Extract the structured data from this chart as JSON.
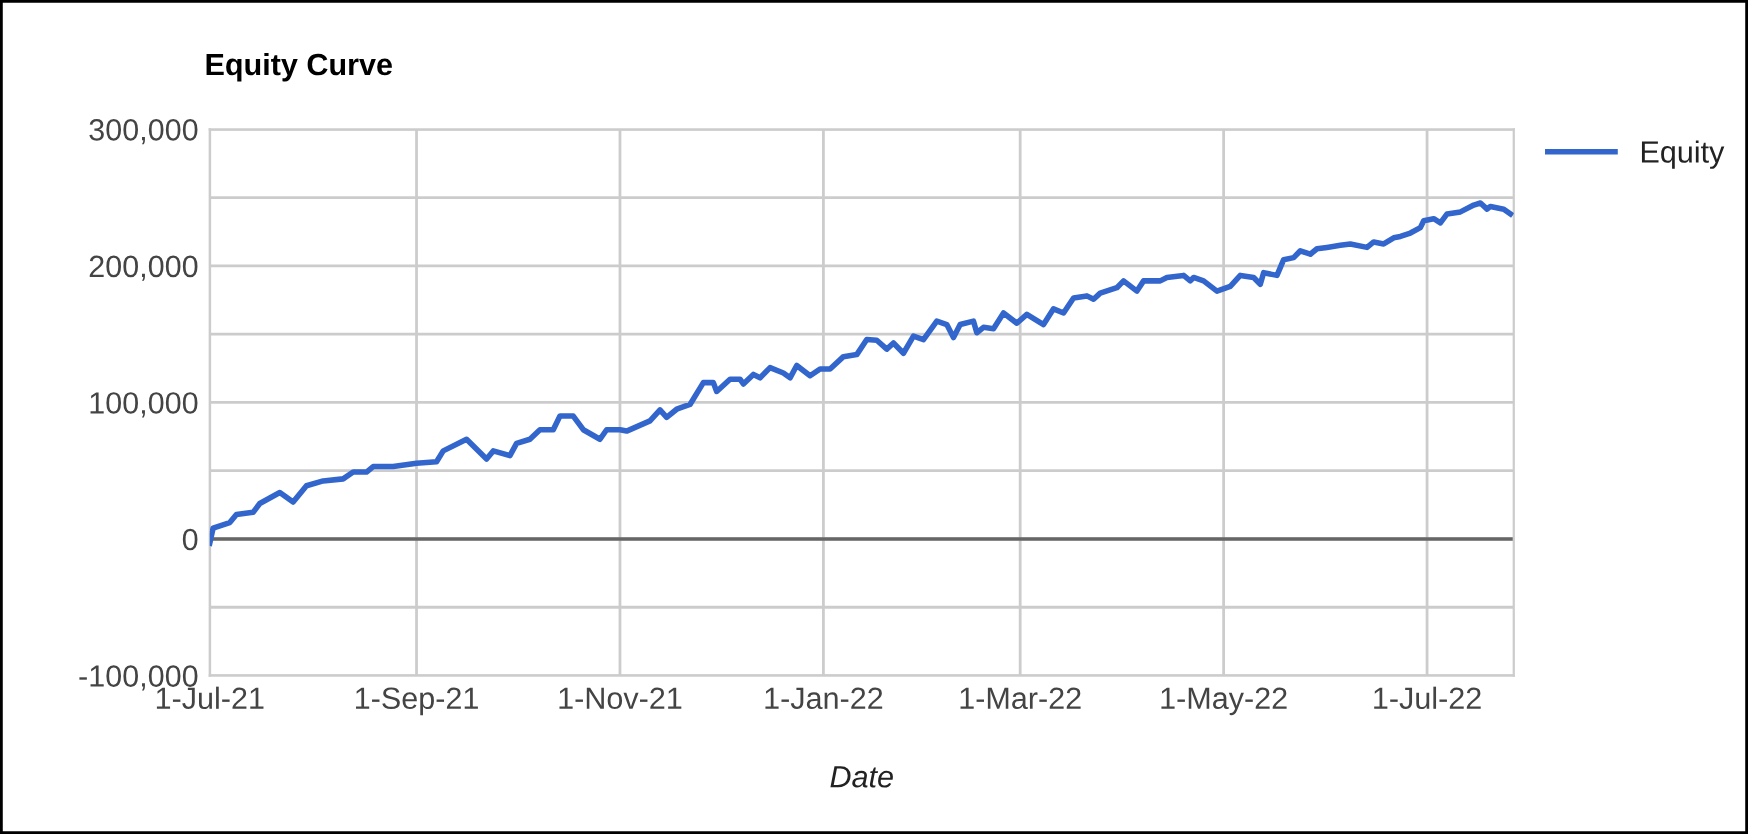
{
  "chart_data": {
    "type": "line",
    "title": "Equity Curve",
    "xlabel": "Date",
    "xlim": [
      "2021-07-01",
      "2022-07-27"
    ],
    "xticks": [
      {
        "value": "2021-07-01",
        "label": "1-Jul-21"
      },
      {
        "value": "2021-09-01",
        "label": "1-Sep-21"
      },
      {
        "value": "2021-11-01",
        "label": "1-Nov-21"
      },
      {
        "value": "2022-01-01",
        "label": "1-Jan-22"
      },
      {
        "value": "2022-03-01",
        "label": "1-Mar-22"
      },
      {
        "value": "2022-05-01",
        "label": "1-May-22"
      },
      {
        "value": "2022-07-01",
        "label": "1-Jul-22"
      }
    ],
    "ylim": [
      -100000,
      300000
    ],
    "yticks": [
      {
        "value": -100000,
        "label": "-100,000"
      },
      {
        "value": -50000,
        "label": null
      },
      {
        "value": 0,
        "label": "0"
      },
      {
        "value": 50000,
        "label": null
      },
      {
        "value": 100000,
        "label": "100,000"
      },
      {
        "value": 150000,
        "label": null
      },
      {
        "value": 200000,
        "label": "200,000"
      },
      {
        "value": 250000,
        "label": null
      },
      {
        "value": 300000,
        "label": "300,000"
      }
    ],
    "grid": true,
    "legend": "top right",
    "marker": "none",
    "line_style": "solid",
    "ref_lines": [
      {
        "axis": "y",
        "value": 0,
        "color": "#666666"
      }
    ],
    "x": [
      "2021-07-01",
      "2021-07-02",
      "2021-07-07",
      "2021-07-09",
      "2021-07-14",
      "2021-07-16",
      "2021-07-22",
      "2021-07-26",
      "2021-07-30",
      "2021-08-04",
      "2021-08-10",
      "2021-08-13",
      "2021-08-17",
      "2021-08-19",
      "2021-08-25",
      "2021-09-01",
      "2021-09-07",
      "2021-09-09",
      "2021-09-16",
      "2021-09-22",
      "2021-09-24",
      "2021-09-29",
      "2021-10-01",
      "2021-10-05",
      "2021-10-08",
      "2021-10-12",
      "2021-10-14",
      "2021-10-18",
      "2021-10-21",
      "2021-10-26",
      "2021-10-28",
      "2021-11-01",
      "2021-11-03",
      "2021-11-10",
      "2021-11-13",
      "2021-11-15",
      "2021-11-18",
      "2021-11-22",
      "2021-11-26",
      "2021-11-29",
      "2021-11-30",
      "2021-12-04",
      "2021-12-07",
      "2021-12-08",
      "2021-12-11",
      "2021-12-13",
      "2021-12-16",
      "2021-12-20",
      "2021-12-22",
      "2021-12-24",
      "2021-12-28",
      "2021-12-31",
      "2022-01-03",
      "2022-01-07",
      "2022-01-11",
      "2022-01-14",
      "2022-01-17",
      "2022-01-20",
      "2022-01-22",
      "2022-01-25",
      "2022-01-28",
      "2022-01-31",
      "2022-02-04",
      "2022-02-07",
      "2022-02-09",
      "2022-02-11",
      "2022-02-15",
      "2022-02-16",
      "2022-02-18",
      "2022-02-21",
      "2022-02-24",
      "2022-02-28",
      "2022-03-03",
      "2022-03-08",
      "2022-03-11",
      "2022-03-14",
      "2022-03-17",
      "2022-03-21",
      "2022-03-23",
      "2022-03-25",
      "2022-03-30",
      "2022-04-01",
      "2022-04-05",
      "2022-04-07",
      "2022-04-12",
      "2022-04-14",
      "2022-04-19",
      "2022-04-21",
      "2022-04-22",
      "2022-04-25",
      "2022-04-29",
      "2022-05-03",
      "2022-05-06",
      "2022-05-10",
      "2022-05-12",
      "2022-05-13",
      "2022-05-17",
      "2022-05-19",
      "2022-05-22",
      "2022-05-24",
      "2022-05-27",
      "2022-05-29",
      "2022-06-01",
      "2022-06-05",
      "2022-06-08",
      "2022-06-13",
      "2022-06-15",
      "2022-06-18",
      "2022-06-21",
      "2022-06-23",
      "2022-06-26",
      "2022-06-29",
      "2022-06-30",
      "2022-07-03",
      "2022-07-05",
      "2022-07-07",
      "2022-07-11",
      "2022-07-15",
      "2022-07-17",
      "2022-07-19",
      "2022-07-20",
      "2022-07-24",
      "2022-07-26"
    ],
    "series": [
      {
        "name": "Equity",
        "color": "#3366cc",
        "values": [
          -3000,
          8000,
          12000,
          18000,
          19500,
          26000,
          34000,
          27000,
          39000,
          42500,
          44000,
          49000,
          49000,
          53000,
          53000,
          55500,
          56500,
          64500,
          73000,
          58500,
          64500,
          61000,
          70000,
          73000,
          80000,
          80000,
          90000,
          90000,
          80000,
          73000,
          80000,
          80000,
          79000,
          86500,
          94500,
          89000,
          95000,
          98500,
          114500,
          114500,
          108000,
          117000,
          117000,
          113500,
          120500,
          118000,
          125500,
          121500,
          118000,
          127000,
          119500,
          124500,
          124500,
          133500,
          135000,
          146000,
          145500,
          139000,
          143500,
          136000,
          148500,
          146000,
          159500,
          157000,
          147500,
          157000,
          159500,
          151000,
          155000,
          154000,
          165500,
          158000,
          164500,
          157000,
          168500,
          165500,
          176500,
          178000,
          175500,
          180000,
          184000,
          189000,
          181500,
          189000,
          189000,
          191500,
          193000,
          189000,
          191500,
          189000,
          181500,
          185000,
          193000,
          191500,
          186500,
          195000,
          193000,
          204500,
          206000,
          211000,
          208500,
          212500,
          213500,
          215000,
          216000,
          213500,
          217500,
          216000,
          220500,
          221500,
          224000,
          228000,
          233000,
          234500,
          231500,
          238000,
          239500,
          244500,
          246000,
          241500,
          243500,
          241500,
          238000
        ]
      }
    ]
  }
}
